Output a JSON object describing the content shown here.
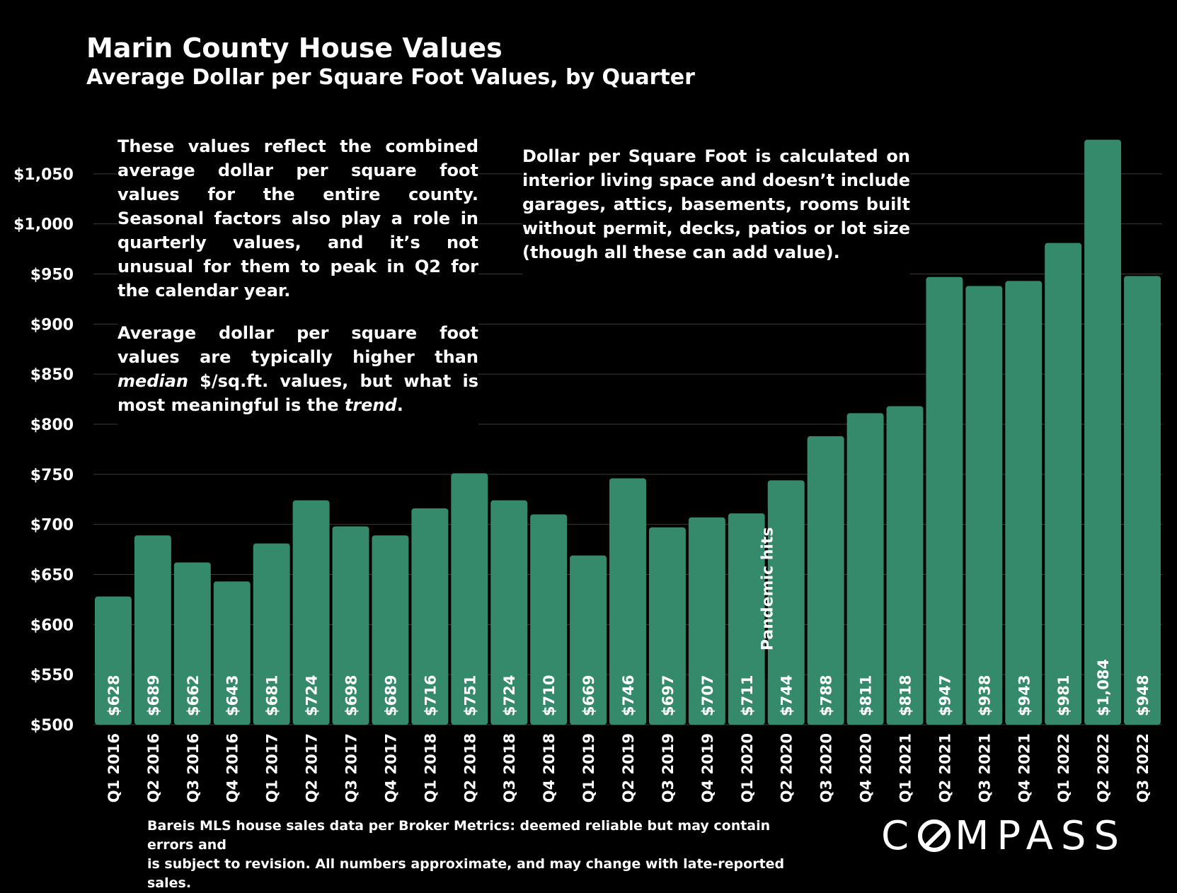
{
  "header": {
    "title": "Marin County House Values",
    "subtitle": "Average Dollar per Square Foot Values, by Quarter"
  },
  "notes": {
    "left_p1": "These values reflect the combined average dollar per square foot values for the entire county. Seasonal factors also play a role in quarterly values, and it’s not unusual for them to peak in Q2 for the calendar year.",
    "left_p2_a": "Average dollar per square foot values are typically higher than ",
    "left_p2_em1": "median",
    "left_p2_b": " $/sq.ft. values, but what is most meaningful is the ",
    "left_p2_em2": "trend",
    "left_p2_c": ".",
    "right": "Dollar per Square Foot is calculated on interior living space and doesn’t include garages, attics, basements, rooms built without permit, decks, patios or lot size (though all these can add value)."
  },
  "footer": {
    "source_line1": "Bareis MLS house sales data per Broker Metrics:  deemed reliable but may contain errors and",
    "source_line2": "is subject to revision. All numbers approximate, and may change with late-reported sales.",
    "logo_pre": "C",
    "logo_post": "MPASS"
  },
  "colors": {
    "background": "#000000",
    "bar": "#368a6c",
    "text": "#ffffff",
    "grid": "#3a3a3a"
  },
  "chart_data": {
    "type": "bar",
    "title": "Marin County House Values",
    "subtitle": "Average Dollar per Square Foot Values, by Quarter",
    "xlabel": "",
    "ylabel": "",
    "ylim": [
      500,
      1100
    ],
    "yticks": [
      500,
      550,
      600,
      650,
      700,
      750,
      800,
      850,
      900,
      950,
      1000,
      1050
    ],
    "ytick_labels": [
      "$500",
      "$550",
      "$600",
      "$650",
      "$700",
      "$750",
      "$800",
      "$850",
      "$900",
      "$950",
      "$1,000",
      "$1,050"
    ],
    "grid": true,
    "categories": [
      "Q1 2016",
      "Q2 2016",
      "Q3 2016",
      "Q4 2016",
      "Q1 2017",
      "Q2 2017",
      "Q3 2017",
      "Q4 2017",
      "Q1 2018",
      "Q2 2018",
      "Q3 2018",
      "Q4 2018",
      "Q1 2019",
      "Q2 2019",
      "Q3 2019",
      "Q4 2019",
      "Q1 2020",
      "Q2 2020",
      "Q3 2020",
      "Q4 2020",
      "Q1 2021",
      "Q2 2021",
      "Q3 2021",
      "Q4 2021",
      "Q1 2022",
      "Q2 2022",
      "Q3 2022"
    ],
    "values": [
      628,
      689,
      662,
      643,
      681,
      724,
      698,
      689,
      716,
      751,
      724,
      710,
      669,
      746,
      697,
      707,
      711,
      744,
      788,
      811,
      818,
      947,
      938,
      943,
      981,
      1084,
      948
    ],
    "data_labels": [
      "$628",
      "$689",
      "$662",
      "$643",
      "$681",
      "$724",
      "$698",
      "$689",
      "$716",
      "$751",
      "$724",
      "$710",
      "$669",
      "$746",
      "$697",
      "$707",
      "$711",
      "$744",
      "$788",
      "$811",
      "$818",
      "$947",
      "$938",
      "$943",
      "$981",
      "$1,084",
      "$948"
    ],
    "annotations": [
      {
        "text": "Pandemic hits",
        "between": [
          "Q1 2020",
          "Q2 2020"
        ]
      }
    ]
  }
}
